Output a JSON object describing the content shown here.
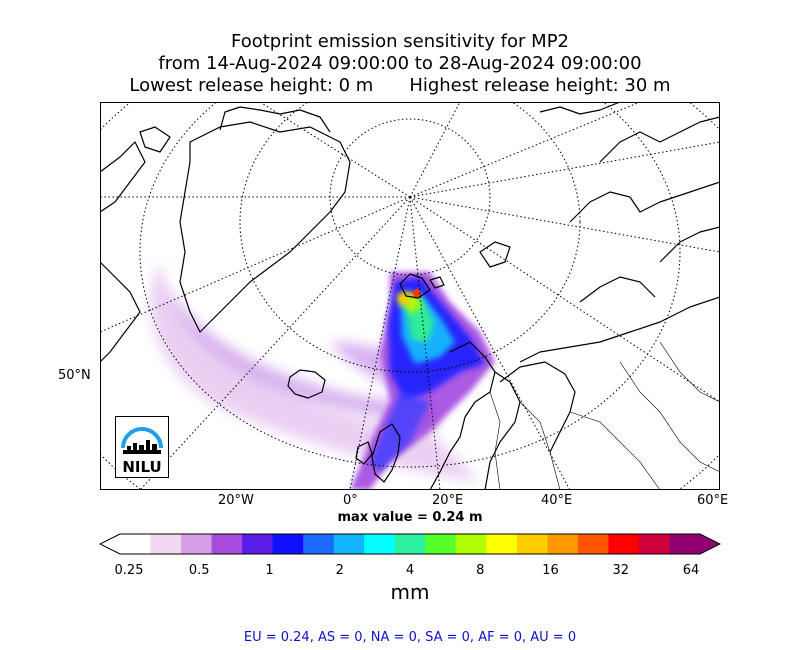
{
  "title": {
    "line1": "Footprint emission sensitivity for MP2",
    "line2": "from 14-Aug-2024 09:00:00 to 28-Aug-2024 09:00:00",
    "lowest_release": "Lowest release height: 0 m",
    "highest_release": "Highest release height: 30 m"
  },
  "axis": {
    "lat_labels": [
      "50°N"
    ],
    "lon_labels": [
      "20°W",
      "0°",
      "20°E",
      "40°E",
      "60°E"
    ]
  },
  "max_value_text": "max value = 0.24 m",
  "colorbar": {
    "tick_labels": [
      "0.25",
      "0.5",
      "1",
      "2",
      "4",
      "8",
      "16",
      "32",
      "64"
    ],
    "unit": "mm",
    "colors": [
      "#ffffff",
      "#f0d8f2",
      "#d79ee6",
      "#a64de0",
      "#5a1ee8",
      "#1010ff",
      "#1a6cff",
      "#12b6ff",
      "#00ffff",
      "#2cf0a0",
      "#55ff2a",
      "#b0ff00",
      "#ffff00",
      "#ffcc00",
      "#ff9900",
      "#ff5500",
      "#ff0000",
      "#d00040",
      "#900070"
    ]
  },
  "regions_text": "EU = 0.24,  AS = 0,  NA = 0,  SA = 0,  AF = 0,  AU = 0",
  "logo": {
    "text": "NILU",
    "color": "#1ea0e6"
  }
}
